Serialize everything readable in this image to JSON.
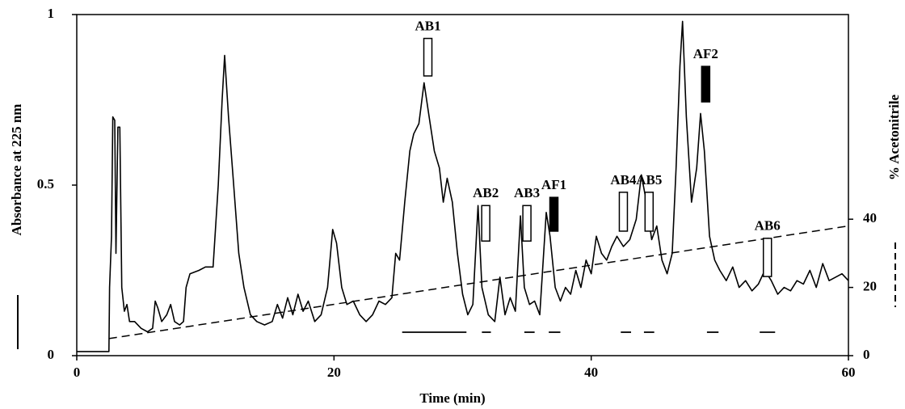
{
  "chart_data": {
    "type": "line",
    "xlabel": "Time (min)",
    "ylabel": "Absorbance at 225 nm",
    "y2label": "% Acetonitrile",
    "xlim": [
      0,
      60
    ],
    "xticks": [
      0,
      20,
      40,
      60
    ],
    "ylim": [
      0,
      1
    ],
    "yticks": [
      0,
      0.5,
      1
    ],
    "y2lim": [
      0,
      100
    ],
    "y2ticks": [
      0,
      20,
      40
    ],
    "series": [
      {
        "axis": "y",
        "color": "#000000",
        "style": "solid",
        "x": [
          0,
          2.5,
          2.55,
          2.7,
          2.8,
          2.95,
          3.05,
          3.2,
          3.35,
          3.5,
          3.7,
          3.9,
          4.1,
          4.5,
          5,
          5.5,
          5.9,
          6.1,
          6.3,
          6.6,
          7,
          7.3,
          7.6,
          8,
          8.3,
          8.5,
          8.8,
          9.5,
          10,
          10.6,
          11,
          11.3,
          11.5,
          11.8,
          12.2,
          12.6,
          13,
          13.5,
          14,
          14.6,
          15.2,
          15.6,
          16,
          16.4,
          16.8,
          17.2,
          17.6,
          18,
          18.5,
          19,
          19.5,
          19.9,
          20.2,
          20.6,
          21,
          21.5,
          22,
          22.5,
          23,
          23.5,
          24,
          24.5,
          24.8,
          25.1,
          25.5,
          25.9,
          26.2,
          26.6,
          27,
          27.4,
          27.8,
          28.2,
          28.5,
          28.8,
          29.2,
          29.6,
          30,
          30.4,
          30.8,
          31.2,
          31.5,
          32,
          32.5,
          32.9,
          33.3,
          33.7,
          34.1,
          34.5,
          34.8,
          35.2,
          35.6,
          36,
          36.5,
          36.8,
          37.2,
          37.6,
          38,
          38.4,
          38.8,
          39.2,
          39.6,
          40,
          40.4,
          40.8,
          41.2,
          41.6,
          42,
          42.5,
          43,
          43.5,
          43.9,
          44.3,
          44.7,
          45.1,
          45.5,
          45.9,
          46.3,
          46.6,
          46.9,
          47.1,
          47.4,
          47.8,
          48.2,
          48.5,
          48.8,
          49.2,
          49.6,
          50,
          50.5,
          51,
          51.5,
          52,
          52.5,
          53,
          53.5,
          54,
          54.5,
          55,
          55.5,
          56,
          56.5,
          57,
          57.5,
          58,
          58.5,
          59,
          59.5,
          60
        ],
        "values": [
          0.012,
          0.012,
          0.2,
          0.35,
          0.7,
          0.69,
          0.3,
          0.67,
          0.67,
          0.2,
          0.13,
          0.15,
          0.1,
          0.1,
          0.08,
          0.07,
          0.08,
          0.16,
          0.14,
          0.1,
          0.12,
          0.15,
          0.1,
          0.09,
          0.1,
          0.2,
          0.24,
          0.25,
          0.26,
          0.26,
          0.5,
          0.75,
          0.88,
          0.7,
          0.5,
          0.3,
          0.2,
          0.12,
          0.1,
          0.09,
          0.1,
          0.15,
          0.11,
          0.17,
          0.12,
          0.18,
          0.13,
          0.16,
          0.1,
          0.12,
          0.2,
          0.37,
          0.33,
          0.2,
          0.15,
          0.16,
          0.12,
          0.1,
          0.12,
          0.16,
          0.15,
          0.17,
          0.3,
          0.28,
          0.45,
          0.6,
          0.65,
          0.68,
          0.8,
          0.7,
          0.6,
          0.55,
          0.45,
          0.52,
          0.45,
          0.3,
          0.18,
          0.12,
          0.15,
          0.44,
          0.2,
          0.12,
          0.1,
          0.23,
          0.12,
          0.17,
          0.13,
          0.41,
          0.2,
          0.15,
          0.16,
          0.12,
          0.42,
          0.35,
          0.2,
          0.16,
          0.2,
          0.18,
          0.25,
          0.2,
          0.28,
          0.24,
          0.35,
          0.3,
          0.28,
          0.32,
          0.35,
          0.32,
          0.34,
          0.4,
          0.53,
          0.45,
          0.34,
          0.38,
          0.28,
          0.24,
          0.3,
          0.55,
          0.85,
          0.98,
          0.7,
          0.45,
          0.55,
          0.71,
          0.6,
          0.35,
          0.28,
          0.25,
          0.22,
          0.26,
          0.2,
          0.22,
          0.19,
          0.21,
          0.25,
          0.22,
          0.18,
          0.2,
          0.19,
          0.22,
          0.21,
          0.25,
          0.2,
          0.27,
          0.22,
          0.23,
          0.24,
          0.22
        ]
      },
      {
        "axis": "y2",
        "color": "#000000",
        "style": "dashed",
        "x": [
          2.5,
          60
        ],
        "values": [
          5,
          38
        ]
      }
    ],
    "annotations": [
      {
        "text": "AB1",
        "x": 27.3,
        "ymin": 0.82,
        "ymax": 0.93,
        "filled": false
      },
      {
        "text": "AB2",
        "x": 31.8,
        "ymin": 0.336,
        "ymax": 0.44,
        "filled": false
      },
      {
        "text": "AB3",
        "x": 35.0,
        "ymin": 0.336,
        "ymax": 0.44,
        "filled": false
      },
      {
        "text": "AF1",
        "x": 37.1,
        "ymin": 0.365,
        "ymax": 0.464,
        "filled": true
      },
      {
        "text": "AB4",
        "x": 42.5,
        "ymin": 0.365,
        "ymax": 0.479,
        "filled": false
      },
      {
        "text": "AB5",
        "x": 44.5,
        "ymin": 0.365,
        "ymax": 0.479,
        "filled": false
      },
      {
        "text": "AF2",
        "x": 48.9,
        "ymin": 0.744,
        "ymax": 0.848,
        "filled": true
      },
      {
        "text": "AB6",
        "x": 53.7,
        "ymin": 0.232,
        "ymax": 0.344,
        "filled": false
      }
    ],
    "fractions": [
      [
        25.3,
        30.3
      ],
      [
        31.5,
        32.2
      ],
      [
        34.8,
        35.6
      ],
      [
        36.7,
        37.6
      ],
      [
        42.3,
        43.1
      ],
      [
        44.1,
        44.9
      ],
      [
        49.0,
        49.9
      ],
      [
        53.1,
        54.3
      ]
    ]
  }
}
